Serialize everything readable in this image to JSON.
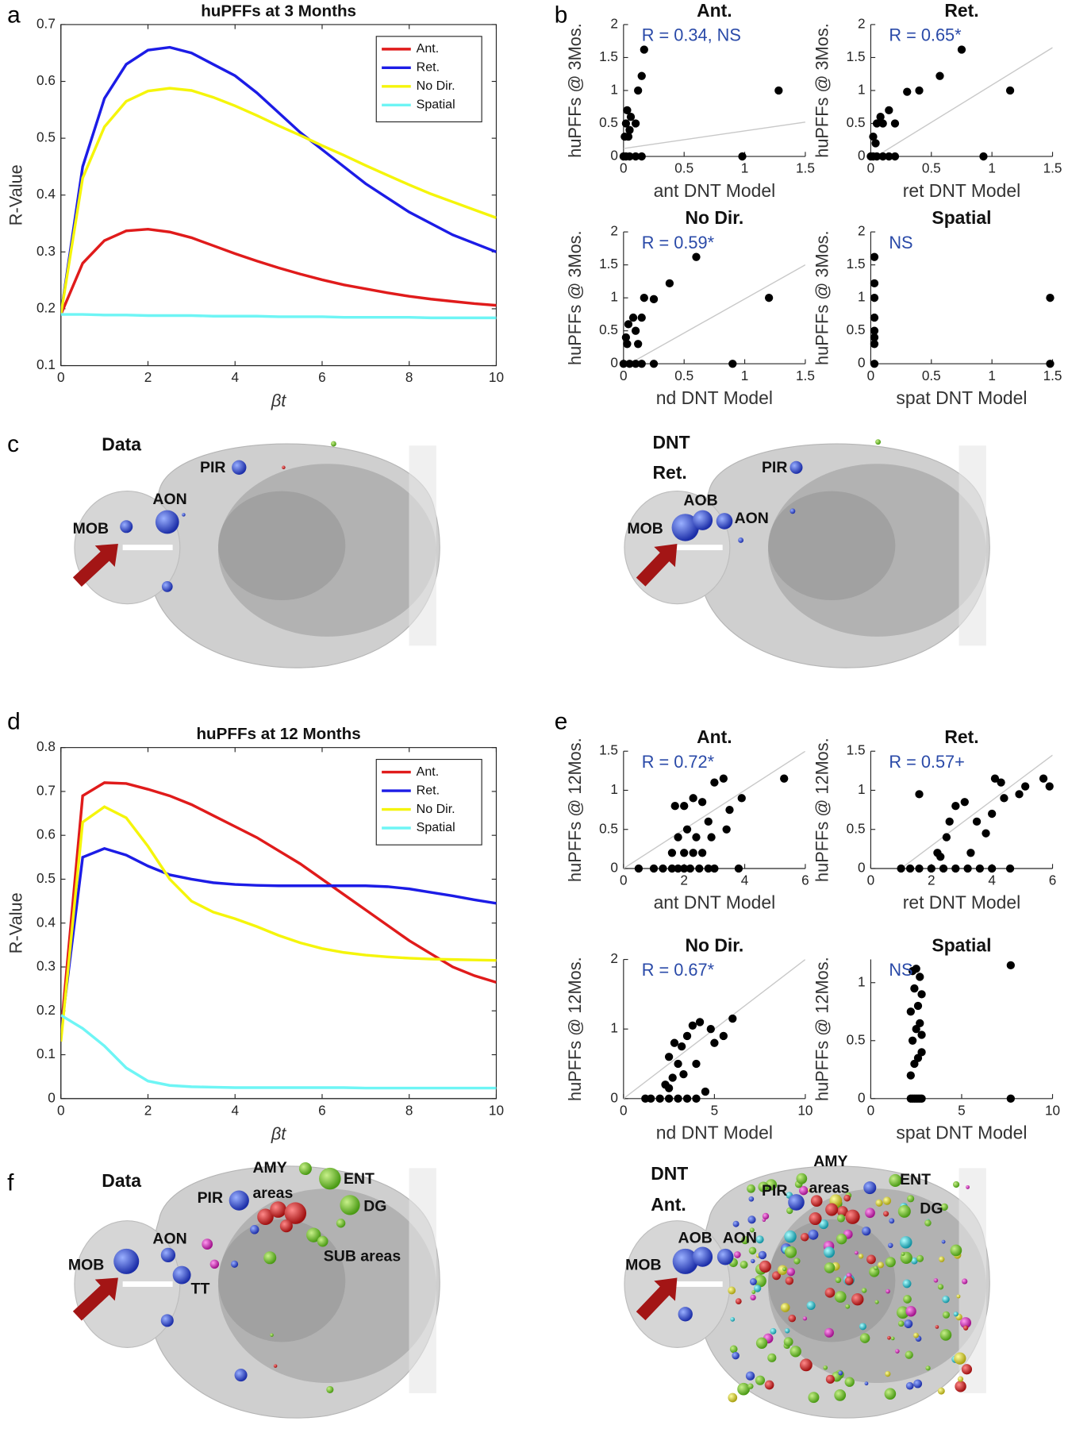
{
  "panel_letters": [
    "a",
    "b",
    "c",
    "d",
    "e",
    "f"
  ],
  "brains": [
    {
      "labels": [
        "Data",
        "PIR",
        "AON",
        "MOB"
      ]
    },
    {
      "labels": [
        "DNT",
        "Ret.",
        "PIR",
        "AOB",
        "MOB",
        "AON"
      ]
    },
    {
      "labels": [
        "Data",
        "AMY",
        "areas",
        "ENT",
        "PIR",
        "DG",
        "AON",
        "SUB areas",
        "MOB",
        "TT"
      ]
    },
    {
      "labels": [
        "DNT",
        "Ant.",
        "AMY",
        "areas",
        "PIR",
        "ENT",
        "DG",
        "AOB",
        "AON",
        "MOB"
      ]
    }
  ],
  "chart_data": [
    {
      "type": "line",
      "title": "huPFFs at 3 Months",
      "xlabel": "βt",
      "ylabel": "R-Value",
      "xlim": [
        0,
        10
      ],
      "ylim": [
        0.1,
        0.7
      ],
      "xticks": [
        0,
        2,
        4,
        6,
        8,
        10
      ],
      "yticks": [
        0.1,
        0.2,
        0.3,
        0.4,
        0.5,
        0.6,
        0.7
      ],
      "legend": "upper right",
      "x": [
        0,
        0.5,
        1,
        1.5,
        2,
        2.5,
        3,
        3.5,
        4,
        4.5,
        5,
        5.5,
        6,
        6.5,
        7,
        7.5,
        8,
        8.5,
        9,
        9.5,
        10
      ],
      "series": [
        {
          "name": "Ant.",
          "color": "#e01b1b",
          "values": [
            0.19,
            0.28,
            0.32,
            0.337,
            0.34,
            0.335,
            0.325,
            0.311,
            0.297,
            0.284,
            0.272,
            0.261,
            0.251,
            0.242,
            0.235,
            0.228,
            0.222,
            0.217,
            0.213,
            0.209,
            0.206
          ]
        },
        {
          "name": "Ret.",
          "color": "#1c1ce6",
          "values": [
            0.19,
            0.45,
            0.57,
            0.63,
            0.655,
            0.66,
            0.65,
            0.63,
            0.61,
            0.58,
            0.545,
            0.51,
            0.48,
            0.45,
            0.42,
            0.395,
            0.37,
            0.35,
            0.33,
            0.315,
            0.3
          ]
        },
        {
          "name": "No Dir.",
          "color": "#f5f50a",
          "values": [
            0.19,
            0.43,
            0.52,
            0.565,
            0.583,
            0.588,
            0.584,
            0.572,
            0.557,
            0.54,
            0.522,
            0.505,
            0.487,
            0.47,
            0.452,
            0.435,
            0.418,
            0.402,
            0.388,
            0.374,
            0.36
          ]
        },
        {
          "name": "Spatial",
          "color": "#6ef5f5",
          "values": [
            0.19,
            0.19,
            0.189,
            0.189,
            0.188,
            0.188,
            0.188,
            0.187,
            0.187,
            0.187,
            0.186,
            0.186,
            0.186,
            0.185,
            0.185,
            0.185,
            0.185,
            0.184,
            0.184,
            0.184,
            0.184
          ]
        }
      ]
    },
    {
      "type": "scatter",
      "title": "Ant.",
      "xlabel": "ant DNT Model",
      "ylabel": "huPFFs @ 3Mos.",
      "annotation": "R = 0.34, NS",
      "annotation_color": "#2a4aa8",
      "color": "#000000",
      "xlim": [
        0,
        1.5
      ],
      "ylim": [
        0,
        2
      ],
      "xticks": [
        0,
        0.5,
        1,
        1.5
      ],
      "yticks": [
        0,
        0.5,
        1,
        1.5,
        2
      ],
      "fit_x": [
        0,
        1.5
      ],
      "fit_y": [
        0.12,
        0.52
      ],
      "x": [
        0,
        0.02,
        0.05,
        0.1,
        0.15,
        0.01,
        0.02,
        0.03,
        0.05,
        0.06,
        0.1,
        0.12,
        0.15,
        0.17,
        0.04,
        1.28,
        0.98
      ],
      "y": [
        0,
        0,
        0,
        0,
        0,
        0.3,
        0.5,
        0.7,
        0.4,
        0.6,
        0.5,
        1.0,
        1.22,
        1.62,
        0.3,
        1.0,
        0
      ]
    },
    {
      "type": "scatter",
      "title": "Ret.",
      "xlabel": "ret DNT Model",
      "ylabel": "huPFFs @ 3Mos.",
      "annotation": "R = 0.65*",
      "annotation_color": "#2a4aa8",
      "color": "#000000",
      "xlim": [
        0,
        1.5
      ],
      "ylim": [
        0,
        2
      ],
      "xticks": [
        0,
        0.5,
        1,
        1.5
      ],
      "yticks": [
        0,
        0.5,
        1,
        1.5,
        2
      ],
      "fit_x": [
        0,
        1.5
      ],
      "fit_y": [
        -0.05,
        1.65
      ],
      "x": [
        0,
        0.02,
        0.05,
        0.1,
        0.15,
        0.2,
        0.02,
        0.05,
        0.08,
        0.1,
        0.15,
        0.2,
        0.3,
        0.4,
        0.57,
        0.75,
        1.15,
        0.93,
        0.04
      ],
      "y": [
        0,
        0,
        0,
        0,
        0,
        0,
        0.3,
        0.5,
        0.6,
        0.5,
        0.7,
        0.5,
        0.98,
        1.0,
        1.22,
        1.62,
        1.0,
        0,
        0.2
      ]
    },
    {
      "type": "scatter",
      "title": "No Dir.",
      "xlabel": "nd DNT Model",
      "ylabel": "huPFFs @ 3Mos.",
      "annotation": "R = 0.59*",
      "annotation_color": "#2a4aa8",
      "color": "#000000",
      "xlim": [
        0,
        1.5
      ],
      "ylim": [
        0,
        2
      ],
      "xticks": [
        0,
        0.5,
        1,
        1.5
      ],
      "yticks": [
        0,
        0.5,
        1,
        1.5,
        2
      ],
      "fit_x": [
        0,
        1.5
      ],
      "fit_y": [
        -0.05,
        1.5
      ],
      "x": [
        0.6,
        0.38,
        0.25,
        0.17,
        1.2,
        0.9,
        0.08,
        0.04,
        0.1,
        0.03,
        0.12,
        0.15,
        0,
        0.05,
        0.1,
        0.15,
        0.25,
        0.02
      ],
      "y": [
        1.62,
        1.22,
        0.98,
        1.0,
        1.0,
        0,
        0.7,
        0.6,
        0.5,
        0.3,
        0.3,
        0.7,
        0,
        0,
        0,
        0,
        0,
        0.4
      ]
    },
    {
      "type": "scatter",
      "title": "Spatial",
      "xlabel": "spat DNT Model",
      "ylabel": "huPFFs @ 3Mos.",
      "annotation": "NS",
      "annotation_color": "#2a4aa8",
      "color": "#000000",
      "xlim": [
        0,
        1.5
      ],
      "ylim": [
        0,
        2
      ],
      "xticks": [
        0,
        0.5,
        1,
        1.5
      ],
      "yticks": [
        0,
        0.5,
        1,
        1.5,
        2
      ],
      "x": [
        0.03,
        0.03,
        0.03,
        0.03,
        0.03,
        0.03,
        0.03,
        0.03,
        1.48,
        1.48
      ],
      "y": [
        0,
        0.3,
        0.5,
        0.7,
        1.0,
        1.22,
        1.62,
        0.4,
        1.0,
        0
      ]
    },
    {
      "type": "line",
      "title": "huPFFs at 12 Months",
      "xlabel": "βt",
      "ylabel": "R-Value",
      "xlim": [
        0,
        10
      ],
      "ylim": [
        0,
        0.8
      ],
      "xticks": [
        0,
        2,
        4,
        6,
        8,
        10
      ],
      "yticks": [
        0,
        0.1,
        0.2,
        0.3,
        0.4,
        0.5,
        0.6,
        0.7,
        0.8
      ],
      "legend": "upper right",
      "x": [
        0,
        0.5,
        1,
        1.5,
        2,
        2.5,
        3,
        3.5,
        4,
        4.5,
        5,
        5.5,
        6,
        6.5,
        7,
        7.5,
        8,
        8.5,
        9,
        9.5,
        10
      ],
      "series": [
        {
          "name": "Ant.",
          "color": "#e01b1b",
          "values": [
            0.15,
            0.69,
            0.72,
            0.718,
            0.705,
            0.69,
            0.67,
            0.645,
            0.62,
            0.595,
            0.565,
            0.535,
            0.5,
            0.465,
            0.43,
            0.395,
            0.36,
            0.33,
            0.3,
            0.28,
            0.265
          ]
        },
        {
          "name": "Ret.",
          "color": "#1c1ce6",
          "values": [
            0.15,
            0.55,
            0.57,
            0.555,
            0.53,
            0.51,
            0.5,
            0.492,
            0.488,
            0.486,
            0.485,
            0.485,
            0.485,
            0.485,
            0.485,
            0.483,
            0.478,
            0.47,
            0.462,
            0.453,
            0.445
          ]
        },
        {
          "name": "No Dir.",
          "color": "#f5f50a",
          "values": [
            0.13,
            0.63,
            0.665,
            0.64,
            0.575,
            0.5,
            0.45,
            0.425,
            0.41,
            0.392,
            0.372,
            0.355,
            0.342,
            0.333,
            0.327,
            0.323,
            0.32,
            0.318,
            0.317,
            0.316,
            0.315
          ]
        },
        {
          "name": "Spatial",
          "color": "#6ef5f5",
          "values": [
            0.19,
            0.16,
            0.12,
            0.07,
            0.04,
            0.03,
            0.027,
            0.026,
            0.025,
            0.025,
            0.025,
            0.025,
            0.025,
            0.025,
            0.024,
            0.024,
            0.024,
            0.024,
            0.024,
            0.024,
            0.024
          ]
        }
      ]
    },
    {
      "type": "scatter",
      "title": "Ant.",
      "xlabel": "ant DNT Model",
      "ylabel": "huPFFs @ 12Mos.",
      "annotation": "R = 0.72*",
      "annotation_color": "#2a4aa8",
      "color": "#000000",
      "xlim": [
        0,
        6
      ],
      "ylim": [
        0,
        1.5
      ],
      "xticks": [
        0,
        2,
        4,
        6
      ],
      "yticks": [
        0,
        0.5,
        1,
        1.5
      ],
      "fit_x": [
        0,
        6
      ],
      "fit_y": [
        0,
        1.5
      ],
      "x": [
        0.5,
        1,
        1.3,
        1.6,
        1.8,
        2,
        2.2,
        2.5,
        2.8,
        3,
        3.8,
        1.6,
        2,
        2.3,
        1.8,
        2.1,
        2.4,
        1.7,
        2,
        2.3,
        2.6,
        3,
        3.3,
        2.8,
        3.5,
        3.9,
        5.3,
        2.6,
        2.9,
        3.4
      ],
      "y": [
        0,
        0,
        0,
        0,
        0,
        0,
        0,
        0,
        0,
        0,
        0,
        0.2,
        0.2,
        0.2,
        0.4,
        0.5,
        0.4,
        0.8,
        0.8,
        0.9,
        0.85,
        1.1,
        1.15,
        0.6,
        0.75,
        0.9,
        1.15,
        0.2,
        0.4,
        0.5
      ]
    },
    {
      "type": "scatter",
      "title": "Ret.",
      "xlabel": "ret DNT Model",
      "ylabel": "huPFFs @ 12Mos.",
      "annotation": "R = 0.57+",
      "annotation_color": "#2a4aa8",
      "color": "#000000",
      "xlim": [
        0,
        6
      ],
      "ylim": [
        0,
        1.5
      ],
      "xticks": [
        0,
        2,
        4,
        6
      ],
      "yticks": [
        0,
        0.5,
        1,
        1.5
      ],
      "fit_x": [
        0,
        6
      ],
      "fit_y": [
        -0.29,
        1.45
      ],
      "x": [
        1,
        1.3,
        1.6,
        2,
        2.4,
        2.8,
        3.2,
        3.6,
        4,
        4.6,
        1.6,
        2.2,
        2.5,
        2.6,
        2.8,
        3.1,
        3.5,
        3.8,
        4.1,
        4.3,
        4.4,
        4.9,
        5.1,
        5.7,
        5.9,
        3.3,
        2.3,
        4
      ],
      "y": [
        0,
        0,
        0,
        0,
        0,
        0,
        0,
        0,
        0,
        0,
        0.95,
        0.2,
        0.4,
        0.6,
        0.8,
        0.85,
        0.6,
        0.45,
        1.15,
        1.1,
        0.9,
        0.95,
        1.05,
        1.15,
        1.05,
        0.2,
        0.15,
        0.7
      ]
    },
    {
      "type": "scatter",
      "title": "No Dir.",
      "xlabel": "nd DNT Model",
      "ylabel": "huPFFs @ 12Mos.",
      "annotation": "R = 0.67*",
      "annotation_color": "#2a4aa8",
      "color": "#000000",
      "xlim": [
        0,
        10
      ],
      "ylim": [
        0,
        2
      ],
      "xticks": [
        0,
        5,
        10
      ],
      "yticks": [
        0,
        1,
        2
      ],
      "fit_x": [
        0,
        10
      ],
      "fit_y": [
        0,
        2
      ],
      "x": [
        1.2,
        1.5,
        2,
        2.5,
        3,
        3.5,
        4,
        4.5,
        2.3,
        2.7,
        3,
        2.5,
        3.2,
        2.8,
        3.5,
        3.8,
        4.2,
        4.8,
        5,
        5.5,
        6,
        4,
        3.3,
        2.5
      ],
      "y": [
        0,
        0,
        0,
        0,
        0,
        0,
        0,
        0.1,
        0.2,
        0.3,
        0.5,
        0.6,
        0.75,
        0.8,
        0.9,
        1.05,
        1.1,
        1.0,
        0.8,
        0.9,
        1.15,
        0.5,
        0.35,
        0.15
      ]
    },
    {
      "type": "scatter",
      "title": "Spatial",
      "xlabel": "spat DNT Model",
      "ylabel": "huPFFs @ 12Mos.",
      "annotation": "NS",
      "annotation_color": "#2a4aa8",
      "color": "#000000",
      "xlim": [
        0,
        10
      ],
      "ylim": [
        0,
        1.2
      ],
      "xticks": [
        0,
        5,
        10
      ],
      "yticks": [
        0,
        0.5,
        1
      ],
      "x": [
        2.2,
        2.3,
        2.4,
        2.5,
        2.6,
        2.7,
        2.8,
        2.2,
        2.4,
        2.6,
        2.8,
        2.3,
        2.5,
        2.7,
        2.2,
        2.6,
        2.8,
        2.4,
        2.7,
        2.3,
        2.5,
        2.8,
        7.7,
        7.7
      ],
      "y": [
        0,
        0,
        0,
        0,
        0,
        0,
        0,
        0.2,
        0.3,
        0.35,
        0.4,
        0.5,
        0.6,
        0.65,
        0.75,
        0.8,
        0.9,
        0.95,
        1.05,
        1.1,
        1.12,
        0.55,
        1.15,
        0
      ]
    }
  ]
}
